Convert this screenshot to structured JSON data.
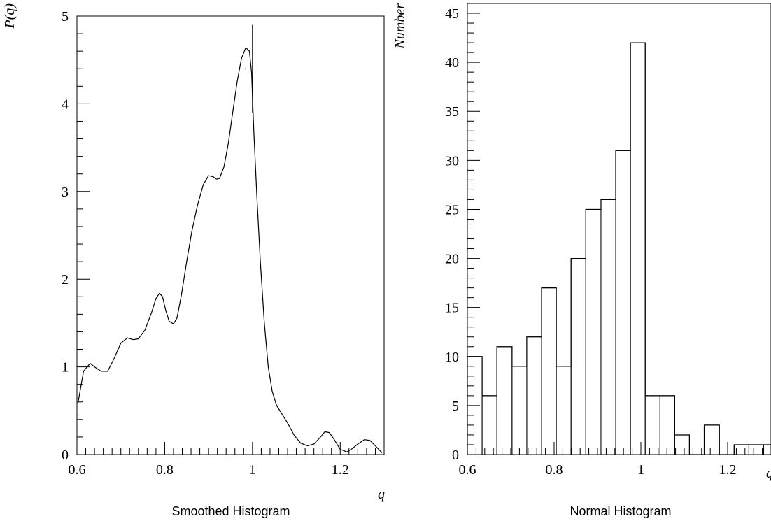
{
  "chart_data": [
    {
      "type": "line",
      "title": "Smoothed Histogram",
      "xlabel": "q",
      "ylabel": "P(q)",
      "xlim": [
        0.6,
        1.3
      ],
      "ylim": [
        0,
        5
      ],
      "xticks": [
        0.6,
        0.8,
        1.0,
        1.2
      ],
      "xtick_labels": [
        "0.6",
        "0.8",
        "1",
        "1.2"
      ],
      "yticks": [
        0,
        1,
        2,
        3,
        4,
        5
      ],
      "ytick_labels": [
        "0",
        "1",
        "2",
        "3",
        "4",
        "5"
      ],
      "grid": false,
      "x": [
        0.602,
        0.615,
        0.63,
        0.64,
        0.655,
        0.67,
        0.685,
        0.7,
        0.715,
        0.728,
        0.74,
        0.755,
        0.77,
        0.78,
        0.788,
        0.795,
        0.802,
        0.81,
        0.82,
        0.828,
        0.838,
        0.85,
        0.862,
        0.875,
        0.888,
        0.9,
        0.91,
        0.918,
        0.925,
        0.935,
        0.945,
        0.955,
        0.965,
        0.975,
        0.985,
        0.993,
        0.998,
        1.003,
        1.01,
        1.018,
        1.027,
        1.036,
        1.045,
        1.055,
        1.065,
        1.08,
        1.095,
        1.11,
        1.125,
        1.14,
        1.155,
        1.165,
        1.175,
        1.185,
        1.2,
        1.215,
        1.228,
        1.24,
        1.255,
        1.268,
        1.28,
        1.295
      ],
      "y": [
        0.58,
        0.95,
        1.04,
        1.0,
        0.95,
        0.95,
        1.1,
        1.27,
        1.33,
        1.31,
        1.32,
        1.42,
        1.62,
        1.78,
        1.84,
        1.8,
        1.65,
        1.52,
        1.49,
        1.56,
        1.82,
        2.2,
        2.55,
        2.85,
        3.08,
        3.18,
        3.17,
        3.14,
        3.15,
        3.28,
        3.55,
        3.9,
        4.25,
        4.52,
        4.64,
        4.6,
        4.35,
        3.7,
        2.95,
        2.2,
        1.5,
        1.0,
        0.72,
        0.56,
        0.48,
        0.36,
        0.22,
        0.13,
        0.1,
        0.12,
        0.2,
        0.26,
        0.25,
        0.18,
        0.06,
        0.03,
        0.07,
        0.12,
        0.17,
        0.16,
        0.1,
        0.02
      ],
      "annotation": {
        "x": 1.0,
        "y": 4.4,
        "yerr": 0.5,
        "xerr": 0.017
      }
    },
    {
      "type": "bar",
      "style": "step-histogram",
      "title": "Normal Histogram",
      "xlabel": "q",
      "ylabel": "Number",
      "xlim": [
        0.6,
        1.3
      ],
      "ylim": [
        0,
        46
      ],
      "xticks": [
        0.6,
        0.8,
        1.0,
        1.2
      ],
      "xtick_labels": [
        "0.6",
        "0.8",
        "1",
        "1.2"
      ],
      "yticks": [
        0,
        5,
        10,
        15,
        20,
        25,
        30,
        35,
        40,
        45
      ],
      "ytick_labels": [
        "0",
        "5",
        "10",
        "15",
        "20",
        "25",
        "30",
        "35",
        "40",
        "45"
      ],
      "grid": false,
      "bin_edges": [
        0.6,
        0.634,
        0.668,
        0.703,
        0.737,
        0.771,
        0.805,
        0.839,
        0.873,
        0.908,
        0.942,
        0.976,
        1.01,
        1.044,
        1.078,
        1.112,
        1.146,
        1.181,
        1.215,
        1.249,
        1.283,
        1.3
      ],
      "values": [
        10,
        6,
        11,
        9,
        12,
        17,
        9,
        20,
        25,
        26,
        31,
        42,
        6,
        6,
        2,
        0,
        3,
        0,
        1,
        1,
        1
      ]
    }
  ]
}
